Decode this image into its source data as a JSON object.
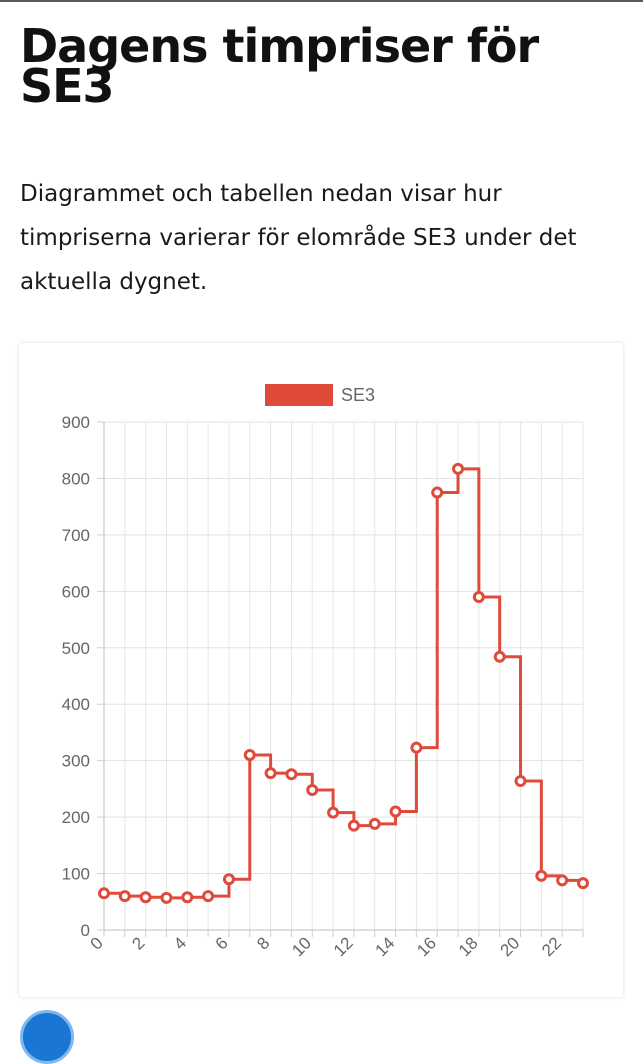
{
  "page": {
    "title": "Dagens timpriser för SE3",
    "intro": "Diagrammet och tabellen nedan visar hur timpriserna varierar för elområde SE3 under det aktuella dygnet."
  },
  "chart_data": {
    "type": "line",
    "step": true,
    "title": "",
    "xlabel": "",
    "ylabel": "",
    "legend": "top-center",
    "grid": true,
    "x": [
      0,
      1,
      2,
      3,
      4,
      5,
      6,
      7,
      8,
      9,
      10,
      11,
      12,
      13,
      14,
      15,
      16,
      17,
      18,
      19,
      20,
      21,
      22,
      23
    ],
    "series": [
      {
        "name": "SE3",
        "color": "#e04a3a",
        "values": [
          65,
          60,
          58,
          57,
          58,
          60,
          90,
          310,
          278,
          276,
          248,
          208,
          185,
          188,
          210,
          323,
          775,
          817,
          590,
          484,
          264,
          96,
          88,
          83
        ]
      }
    ],
    "ylim": [
      0,
      900
    ],
    "yticks": [
      "0",
      "100",
      "200",
      "300",
      "400",
      "500",
      "600",
      "700",
      "800",
      "900"
    ],
    "xticks": [
      "0",
      "2",
      "4",
      "6",
      "8",
      "10",
      "12",
      "14",
      "16",
      "18",
      "20",
      "22"
    ]
  },
  "icons": {
    "bottom": "circle-badge-icon"
  }
}
